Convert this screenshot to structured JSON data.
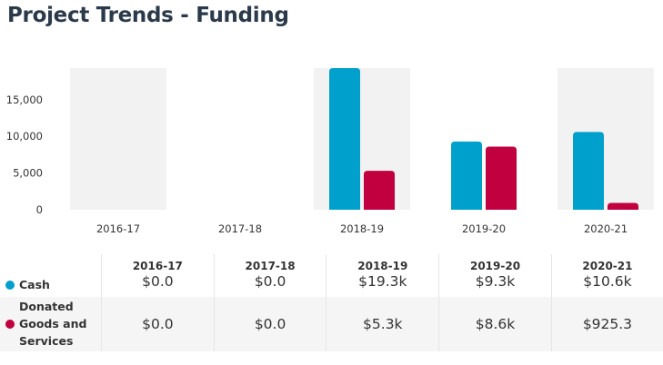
{
  "title": "Project Trends - Funding",
  "colors": {
    "cash": "#00a0cc",
    "donated": "#c0003f",
    "band": "#f2f2f2",
    "title": "#2b3a4a"
  },
  "chart_data": {
    "type": "bar",
    "title": "Project Trends - Funding",
    "xlabel": "",
    "ylabel": "",
    "ylim": [
      0,
      19300
    ],
    "yticks": [
      0,
      5000,
      10000,
      15000
    ],
    "ytick_labels": [
      "0",
      "5,000",
      "10,000",
      "15,000"
    ],
    "grid": false,
    "legend": "bottom-table",
    "categories": [
      "2016-17",
      "2017-18",
      "2018-19",
      "2019-20",
      "2020-21"
    ],
    "series": [
      {
        "name": "Cash",
        "color": "#00a0cc",
        "values": [
          0,
          0,
          19300,
          9300,
          10600
        ]
      },
      {
        "name": "Donated Goods and Services",
        "color": "#c0003f",
        "values": [
          0,
          0,
          5300,
          8600,
          925.3
        ]
      }
    ]
  },
  "table": {
    "years": [
      "2016-17",
      "2017-18",
      "2018-19",
      "2019-20",
      "2020-21"
    ],
    "rows": [
      {
        "label": "Cash",
        "label_lines": [
          "Cash"
        ],
        "values": [
          "$0.0",
          "$0.0",
          "$19.3k",
          "$9.3k",
          "$10.6k"
        ]
      },
      {
        "label": "Donated Goods and Services",
        "label_lines": [
          "Donated",
          "Goods and",
          "Services"
        ],
        "values": [
          "$0.0",
          "$0.0",
          "$5.3k",
          "$8.6k",
          "$925.3"
        ]
      }
    ]
  }
}
